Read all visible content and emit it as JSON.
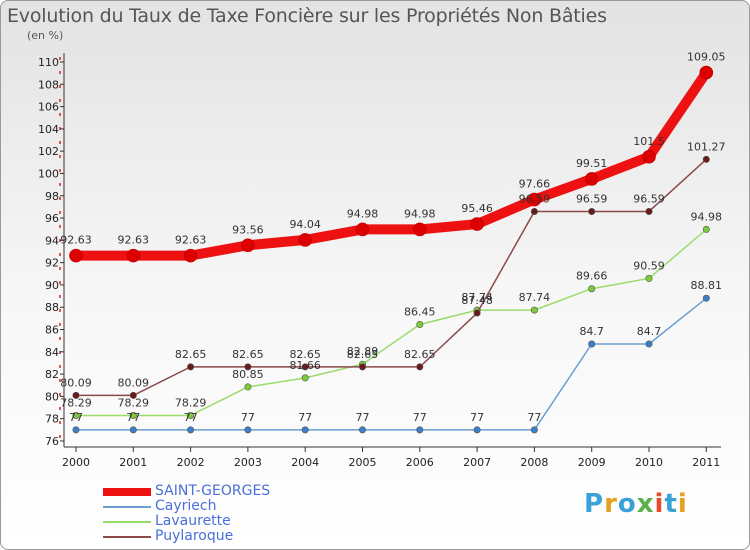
{
  "header": {
    "title": "Evolution du Taux de Taxe Foncière sur les Propriétés Non Bâties",
    "unit": "(en %)"
  },
  "logo": {
    "text": "Proxiti",
    "colors": [
      "#3aa0d8",
      "#e8a020",
      "#3aa0d8",
      "#5bb04a",
      "#e84a2a",
      "#3aa0d8",
      "#e8a020"
    ]
  },
  "chart_data": {
    "type": "line",
    "title": "Evolution du Taux de Taxe Foncière sur les Propriétés Non Bâties",
    "ylabel": "(en %)",
    "xlabel": "",
    "x": [
      "2000",
      "2001",
      "2002",
      "2003",
      "2004",
      "2005",
      "2006",
      "2007",
      "2008",
      "2009",
      "2010",
      "2011"
    ],
    "ylim": [
      76,
      110
    ],
    "yticks": [
      76,
      78,
      80,
      82,
      84,
      86,
      88,
      90,
      92,
      94,
      96,
      98,
      100,
      102,
      104,
      106,
      108,
      110
    ],
    "grid": false,
    "legend_position": "bottom-left",
    "series": [
      {
        "name": "SAINT-GEORGES",
        "color": "#ee1111",
        "markerColor": "#dd0000",
        "lineWidth": 10,
        "markerR": 6.5,
        "values": [
          92.63,
          92.63,
          92.63,
          93.56,
          94.04,
          94.98,
          94.98,
          95.46,
          97.66,
          99.51,
          101.5,
          109.05
        ],
        "labels": [
          "92.63",
          "92.63",
          "92.63",
          "93.56",
          "94.04",
          "94.98",
          "94.98",
          "95.46",
          "97.66",
          "99.51",
          "101.5",
          "109.05"
        ]
      },
      {
        "name": "Cayriech",
        "color": "#6a9fd0",
        "markerColor": "#3a7fc8",
        "lineWidth": 1.5,
        "markerR": 3.2,
        "values": [
          77,
          77,
          77,
          77,
          77,
          77,
          77,
          77,
          77,
          84.7,
          84.7,
          88.81
        ],
        "labels": [
          "77",
          "77",
          "77",
          "77",
          "77",
          "77",
          "77",
          "77",
          "77",
          "84.7",
          "84.7",
          "88.81"
        ]
      },
      {
        "name": "Lavaurette",
        "color": "#9adc6a",
        "markerColor": "#7acc3a",
        "lineWidth": 1.5,
        "markerR": 3.2,
        "values": [
          78.29,
          78.29,
          78.29,
          80.85,
          81.66,
          82.89,
          86.45,
          87.74,
          87.74,
          89.66,
          90.59,
          94.98
        ],
        "labels": [
          "78.29",
          "78.29",
          "78.29",
          "80.85",
          "81.66",
          "82.89",
          "86.45",
          "87.74",
          "87.74",
          "89.66",
          "90.59",
          "94.98"
        ]
      },
      {
        "name": "Puylaroque",
        "color": "#8a4a4a",
        "markerColor": "#6a1a1a",
        "lineWidth": 1.5,
        "markerR": 3.2,
        "values": [
          80.09,
          80.09,
          82.65,
          82.65,
          82.65,
          82.65,
          82.65,
          87.48,
          96.59,
          96.59,
          96.59,
          101.27
        ],
        "labels": [
          "80.09",
          "80.09",
          "82.65",
          "82.65",
          "82.65",
          "82.65",
          "82.65",
          "87.48",
          "96.59",
          "96.59",
          "96.59",
          "101.27"
        ]
      }
    ]
  },
  "legend": {
    "items": [
      {
        "label": "SAINT-GEORGES",
        "color": "#ee1111"
      },
      {
        "label": "Cayriech",
        "color": "#6a9fd0"
      },
      {
        "label": "Lavaurette",
        "color": "#9adc6a"
      },
      {
        "label": "Puylaroque",
        "color": "#8a4a4a"
      }
    ]
  }
}
